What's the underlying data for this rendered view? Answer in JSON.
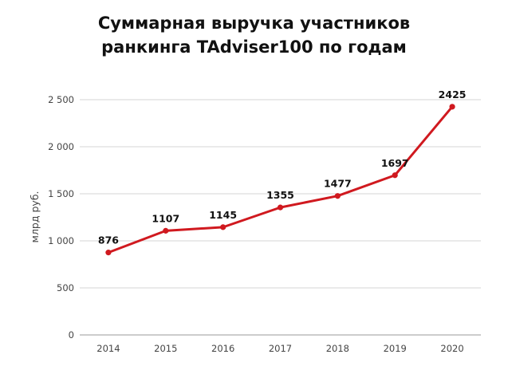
{
  "chart_data": {
    "type": "line",
    "title": "Суммарная выручка участников ранкинга TAdviser100 по годам",
    "title_lines": [
      "Суммарная выручка участников",
      "ранкинга TAdviser100 по годам"
    ],
    "xlabel": "",
    "ylabel": "млрд руб.",
    "categories": [
      "2014",
      "2015",
      "2016",
      "2017",
      "2018",
      "2019",
      "2020"
    ],
    "values": [
      876,
      1107,
      1145,
      1355,
      1477,
      1697,
      2425
    ],
    "data_labels": [
      "876",
      "1107",
      "1145",
      "1355",
      "1477",
      "1697",
      "2425"
    ],
    "ylim": [
      0,
      2500
    ],
    "yticks": [
      0,
      500,
      1000,
      1500,
      2000,
      2500
    ],
    "ytick_labels": [
      "0",
      "500",
      "1 000",
      "1 500",
      "2 000",
      "2 500"
    ],
    "grid": true,
    "legend": "none",
    "line_color": "#d0191f"
  }
}
